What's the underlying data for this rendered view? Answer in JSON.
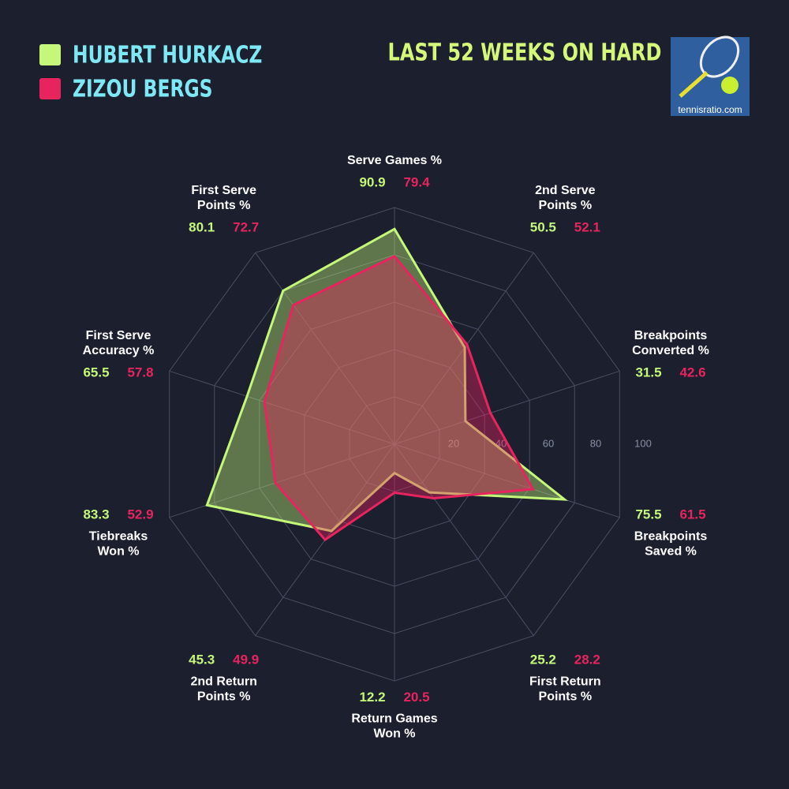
{
  "chart_data": {
    "type": "radar",
    "title": "LAST 52 WEEKS ON HARD",
    "source": "tennisratio.com",
    "categories": [
      [
        "Serve Games %"
      ],
      [
        "2nd Serve",
        "Points %"
      ],
      [
        "Breakpoints",
        "Converted %"
      ],
      [
        "Breakpoints",
        "Saved %"
      ],
      [
        "First Return",
        "Points %"
      ],
      [
        "Return Games",
        "Won %"
      ],
      [
        "2nd Return",
        "Points %"
      ],
      [
        "Tiebreaks",
        "Won %"
      ],
      [
        "First Serve",
        "Accuracy %"
      ],
      [
        "First Serve",
        "Points %"
      ]
    ],
    "series": [
      {
        "name": "HUBERT HURKACZ",
        "color": "#c5f77a",
        "values": [
          90.9,
          50.5,
          31.5,
          75.5,
          25.2,
          12.2,
          45.3,
          83.3,
          65.5,
          80.1
        ]
      },
      {
        "name": "ZIZOU BERGS",
        "color": "#e8245f",
        "values": [
          79.4,
          52.1,
          42.6,
          61.5,
          28.2,
          20.5,
          49.9,
          52.9,
          57.8,
          72.7
        ]
      }
    ],
    "rlim": [
      0,
      100
    ],
    "rticks": [
      20,
      40,
      60,
      80,
      100
    ],
    "grid": true
  }
}
